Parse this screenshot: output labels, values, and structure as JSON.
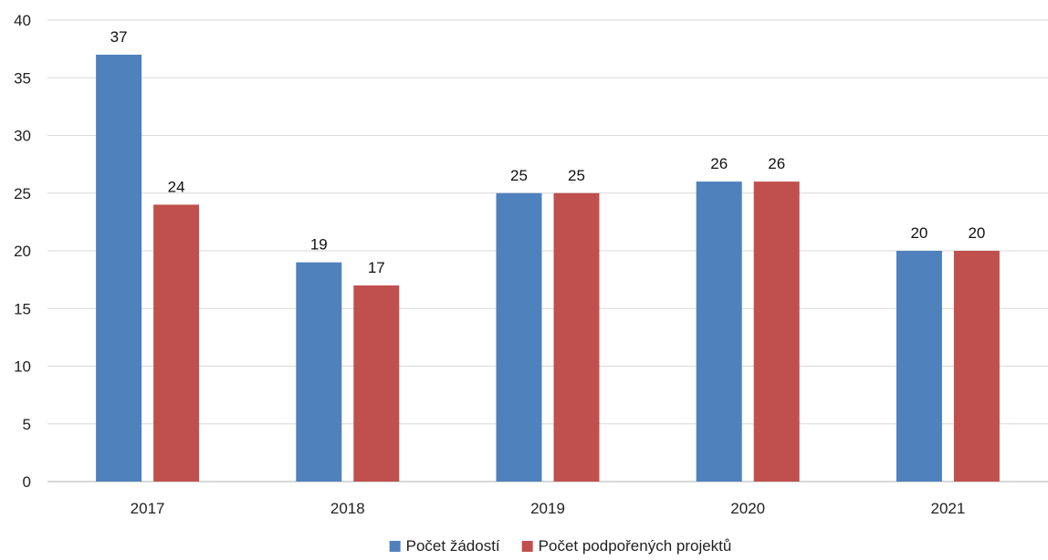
{
  "chart_data": {
    "type": "bar",
    "categories": [
      "2017",
      "2018",
      "2019",
      "2020",
      "2021"
    ],
    "series": [
      {
        "name": "Počet žádostí",
        "color": "#4f81bd",
        "values": [
          37,
          19,
          25,
          26,
          20
        ]
      },
      {
        "name": "Počet podpořených projektů",
        "color": "#c0504d",
        "values": [
          24,
          17,
          25,
          26,
          20
        ]
      }
    ],
    "title": "",
    "xlabel": "",
    "ylabel": "",
    "ylim": [
      0,
      40
    ],
    "yticks": [
      0,
      5,
      10,
      15,
      20,
      25,
      30,
      35,
      40
    ],
    "grid": true,
    "data_labels": true,
    "legend_position": "bottom"
  }
}
